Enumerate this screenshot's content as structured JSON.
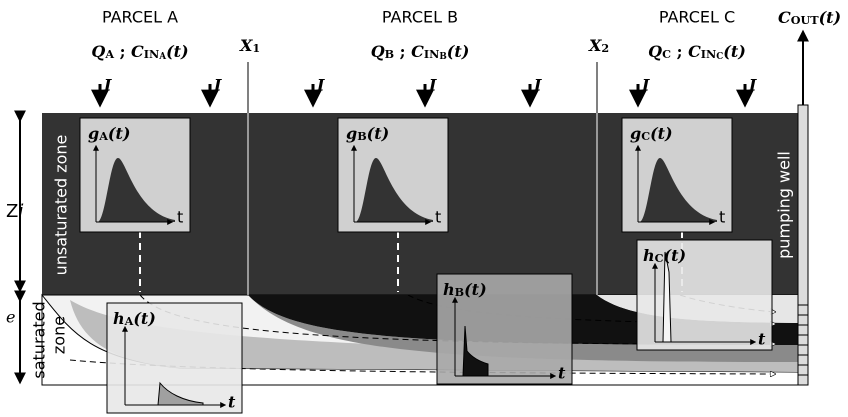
{
  "parcels": [
    {
      "name": "PARCEL A",
      "flow": [
        {
          "t": "Q",
          "i": true
        },
        {
          "t": "A",
          "sub": true
        },
        {
          "t": " ; "
        },
        {
          "t": "C",
          "i": true
        },
        {
          "t": "IN",
          "sub": true
        },
        {
          "t": "A",
          "subsub": true
        },
        {
          "t": "(t)",
          "i": true
        }
      ],
      "infiltration": [
        "I",
        "I"
      ],
      "g_label": [
        {
          "t": "g",
          "i": true
        },
        {
          "t": "A",
          "sub": true
        },
        {
          "t": "(t)",
          "i": true
        }
      ],
      "g_axis": "t",
      "h_label": [
        {
          "t": "h",
          "i": true
        },
        {
          "t": "A",
          "sub": true
        },
        {
          "t": "(t)",
          "i": true
        }
      ],
      "h_axis": "t"
    },
    {
      "name": "PARCEL B",
      "flow": [
        {
          "t": "Q",
          "i": true
        },
        {
          "t": "B",
          "sub": true
        },
        {
          "t": " ; "
        },
        {
          "t": "C",
          "i": true
        },
        {
          "t": "IN",
          "sub": true
        },
        {
          "t": "B",
          "subsub": true
        },
        {
          "t": "(t)",
          "i": true
        }
      ],
      "infiltration": [
        "I",
        "I",
        "I"
      ],
      "g_label": [
        {
          "t": "g",
          "i": true
        },
        {
          "t": "B",
          "sub": true
        },
        {
          "t": "(t)",
          "i": true
        }
      ],
      "g_axis": "t",
      "h_label": [
        {
          "t": "h",
          "i": true
        },
        {
          "t": "B",
          "sub": true
        },
        {
          "t": "(t)",
          "i": true
        }
      ],
      "h_axis": "t"
    },
    {
      "name": "PARCEL C",
      "flow": [
        {
          "t": "Q",
          "i": true
        },
        {
          "t": "C",
          "sub": true
        },
        {
          "t": " ; "
        },
        {
          "t": "C",
          "i": true
        },
        {
          "t": "IN",
          "sub": true
        },
        {
          "t": "C",
          "subsub": true
        },
        {
          "t": "(t)",
          "i": true
        }
      ],
      "infiltration": [
        "I",
        "I"
      ],
      "g_label": [
        {
          "t": "g",
          "i": true
        },
        {
          "t": "C",
          "sub": true
        },
        {
          "t": "(t)",
          "i": true
        }
      ],
      "g_axis": "t",
      "h_label": [
        {
          "t": "h",
          "i": true
        },
        {
          "t": "C",
          "sub": true
        },
        {
          "t": "(t)",
          "i": true
        }
      ],
      "h_axis": "t"
    }
  ],
  "boundaries": [
    [
      {
        "t": "X",
        "i": true
      },
      {
        "t": "1",
        "sub": true
      }
    ],
    [
      {
        "t": "X",
        "i": true
      },
      {
        "t": "2",
        "sub": true
      }
    ]
  ],
  "outflow": [
    {
      "t": "C",
      "i": true
    },
    {
      "t": "OUT",
      "sub": true
    },
    {
      "t": "(t)",
      "i": true
    }
  ],
  "zones": {
    "unsaturated": "unsaturated zone",
    "saturated": [
      "saturated",
      "zone"
    ],
    "unsaturated_thickness": [
      {
        "t": "Z"
      },
      {
        "t": "i",
        "i": true
      }
    ],
    "saturated_thickness": "e"
  },
  "well": "pumping well"
}
